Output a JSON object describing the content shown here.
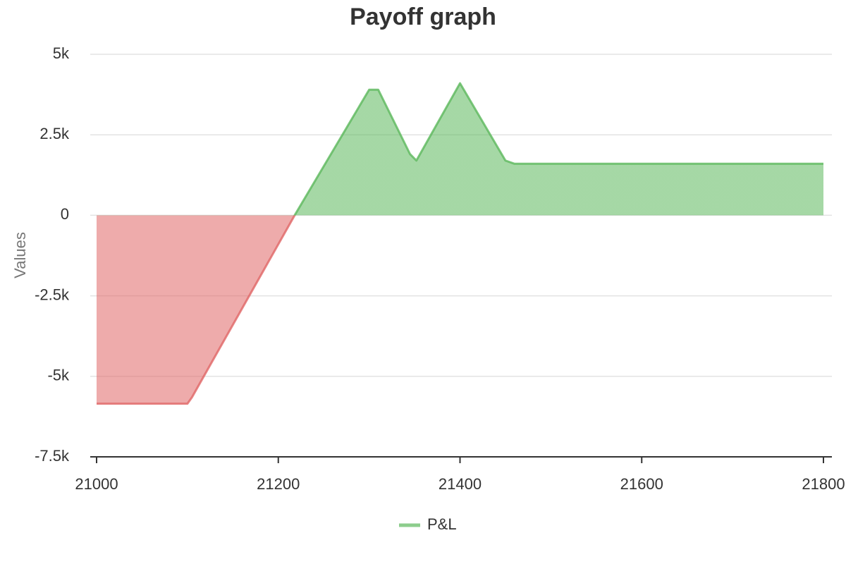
{
  "chart_data": {
    "type": "area",
    "title": "Payoff graph",
    "y_label": "Values",
    "x": [
      21000,
      21100,
      21105,
      21218,
      21300,
      21310,
      21345,
      21352,
      21400,
      21450,
      21460,
      21800
    ],
    "series": [
      {
        "name": "P&L",
        "color": "#5cb85c",
        "negative_color": "#e06666",
        "values": [
          -5850,
          -5850,
          -5650,
          0,
          3900,
          3900,
          1900,
          1700,
          4100,
          1700,
          1600,
          1600
        ]
      }
    ],
    "xlim": [
      21000,
      21800
    ],
    "xticks": [
      21000,
      21200,
      21400,
      21600,
      21800
    ],
    "ylim": [
      -7500,
      5000
    ],
    "yticks": [
      {
        "value": -7500,
        "label": "-7.5k"
      },
      {
        "value": -5000,
        "label": "-5k"
      },
      {
        "value": -2500,
        "label": "-2.5k"
      },
      0,
      {
        "value": 2500,
        "label": "2.5k"
      },
      {
        "value": 5000,
        "label": "5k"
      }
    ],
    "grid": true,
    "legend": "bottom"
  }
}
